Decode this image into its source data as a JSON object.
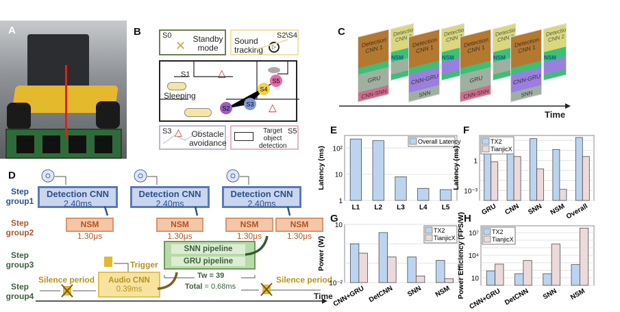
{
  "panels": {
    "A": {
      "label": "A"
    },
    "B": {
      "label": "B",
      "standby": {
        "state": "S0",
        "text": "Standby mode"
      },
      "sound": {
        "state": "S2\\S4",
        "text": "Sound tracking"
      },
      "map": {
        "s1": "S1",
        "sleeping": "Sleeping",
        "nodes": [
          "S2",
          "S3",
          "S4",
          "S5"
        ]
      },
      "obstacle": {
        "state": "S3",
        "text": "Obstacle avoidance"
      },
      "target": {
        "state": "S5",
        "text": "Target object detection"
      }
    },
    "C": {
      "label": "C",
      "frames": [
        {
          "front_top": "Detection CNN 1",
          "back_top": "Detection CNN 2",
          "nsm": "NSM",
          "mid": "GRU",
          "bottom": "CNN-SNN"
        },
        {
          "front_top": "Detection CNN 1",
          "back_top": "Detection CNN 2",
          "nsm": "NSM",
          "mid": "CNN-GRU",
          "bottom": "SNN"
        },
        {
          "front_top": "Detection CNN 1",
          "back_top": "Detection CNN 2",
          "nsm": "NSM",
          "mid": "GRU",
          "bottom": "CNN-SNN"
        },
        {
          "front_top": "Detection CNN 1",
          "back_top": "Detection CNN 2",
          "nsm": "NSM",
          "mid": "CNN-GRU",
          "bottom": "SNN"
        }
      ],
      "time": "Time"
    },
    "D": {
      "label": "D",
      "steps": [
        "Step group1",
        "Step group2",
        "Step group3",
        "Step group4"
      ],
      "detection": [
        {
          "name": "Detection CNN",
          "time": "2.40ms"
        },
        {
          "name": "Detection CNN",
          "time": "2.40ms"
        },
        {
          "name": "Detection CNN",
          "time": "2.40ms"
        }
      ],
      "nsm": [
        {
          "name": "NSM",
          "time": "1.30μs"
        },
        {
          "name": "NSM",
          "time": "1.30μs"
        },
        {
          "name": "NSM",
          "time": "1.30μs"
        },
        {
          "name": "NSM",
          "time": "1.30μs"
        }
      ],
      "snn": "SNN pipeline",
      "gru": "GRU pipeline",
      "trigger": "Trigger",
      "audio": {
        "name": "Audio CNN",
        "time": "0.39ms"
      },
      "silence_left": "Silence period",
      "silence_right": "Silence period",
      "tw": "Tw = 39",
      "total_label": "Total",
      "total_value": "= 0.68ms",
      "time": "Time"
    },
    "E": {
      "label": "E"
    },
    "F": {
      "label": "F"
    },
    "G": {
      "label": "G"
    },
    "H": {
      "label": "H"
    }
  },
  "colors": {
    "tx2": "#bcd4ef",
    "tianjicx": "#ecd9da",
    "edge": "#4a4a4a"
  },
  "chart_data": [
    {
      "panel": "E",
      "type": "bar",
      "yscale": "log",
      "ylim": [
        1,
        300
      ],
      "grid": true,
      "legend": "top-right",
      "ylabel": "Latency (ms)",
      "categories": [
        "L1",
        "L2",
        "L3",
        "L4",
        "L5"
      ],
      "yticks": [
        {
          "v": 1,
          "t": "1"
        },
        {
          "v": 10,
          "t": "10"
        },
        {
          "v": 100,
          "t": "10²"
        }
      ],
      "series": [
        {
          "name": "Overall Latency",
          "values": [
            220,
            190,
            8,
            2.9,
            2.6
          ]
        }
      ]
    },
    {
      "panel": "F",
      "type": "bar",
      "yscale": "log",
      "ylim": [
        0.0001,
        300
      ],
      "grid": true,
      "legend": "top-left",
      "ylabel": "Latency (ms)",
      "categories": [
        "GRU",
        "CNN",
        "SNN",
        "NSM",
        "Overall"
      ],
      "yticks": [
        {
          "v": 0.001,
          "t": "10⁻³"
        },
        {
          "v": 1,
          "t": "1"
        }
      ],
      "series": [
        {
          "name": "TX2",
          "values": [
            7,
            12,
            145,
            12,
            190
          ]
        },
        {
          "name": "TianjicX",
          "values": [
            0.7,
            2.4,
            0.14,
            0.0013,
            2.4
          ]
        }
      ]
    },
    {
      "panel": "G",
      "type": "bar",
      "yscale": "log",
      "ylim": [
        0.01,
        10
      ],
      "grid": true,
      "legend": "top-right",
      "ylabel": "Power (W)",
      "categories": [
        "CNN+GRU",
        "DetCNN",
        "SNN",
        "NSM"
      ],
      "yticks": [
        {
          "v": 0.01,
          "t": "10⁻²"
        },
        {
          "v": 10,
          "t": "10"
        }
      ],
      "series": [
        {
          "name": "TX2",
          "values": [
            1.0,
            3.8,
            0.21,
            0.14
          ]
        },
        {
          "name": "TianjicX",
          "values": [
            0.33,
            0.21,
            0.022,
            0.016
          ]
        }
      ]
    },
    {
      "panel": "H",
      "type": "bar",
      "yscale": "log",
      "ylim": [
        1,
        80000000
      ],
      "grid": true,
      "legend": "top-left",
      "ylabel": "Power Efficiency (FPS/W)",
      "categories": [
        "CNN+GRU",
        "DetCNN",
        "SNN",
        "NSM"
      ],
      "yticks": [
        {
          "v": 10,
          "t": "10"
        },
        {
          "v": 10000,
          "t": "10⁴"
        },
        {
          "v": 10000000,
          "t": "10⁷"
        }
      ],
      "series": [
        {
          "name": "TX2",
          "values": [
            81,
            35,
            35,
            570
          ]
        },
        {
          "name": "TianjicX",
          "values": [
            660,
            2000,
            300000,
            40000000
          ]
        }
      ]
    }
  ]
}
